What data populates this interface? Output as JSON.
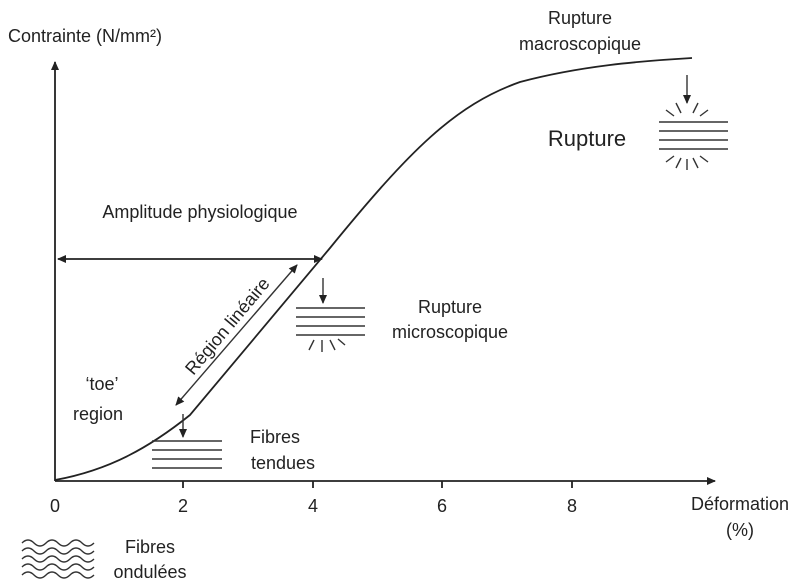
{
  "y_axis_label": "Contrainte (N/mm²)",
  "x_axis": {
    "label": "Déformation",
    "unit": "(%)",
    "ticks": [
      "0",
      "2",
      "4",
      "6",
      "8"
    ]
  },
  "annotations": {
    "rupture_macro": [
      "Rupture",
      "macroscopique"
    ],
    "rupture": "Rupture",
    "amplitude": "Amplitude physiologique",
    "rupture_micro": [
      "Rupture",
      "microscopique"
    ],
    "linear_region": "Région linéaire",
    "toe_region": [
      "‘toe’",
      "region"
    ],
    "fibres_tendues": [
      "Fibres",
      "tendues"
    ],
    "fibres_ondulees": [
      "Fibres",
      "ondulées"
    ]
  }
}
